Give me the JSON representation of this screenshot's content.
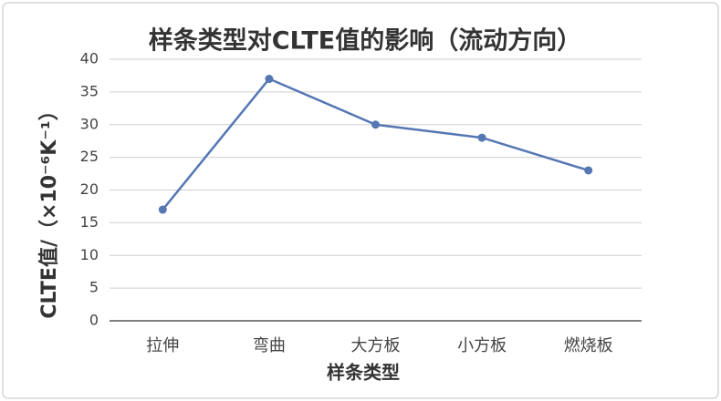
{
  "chart_data": {
    "type": "line",
    "title": "样条类型对CLTE值的影响（流动方向）",
    "x_label": "样条类型",
    "y_label": "CLTE值/（×10⁻⁶K⁻¹）",
    "categories": [
      "拉伸",
      "弯曲",
      "大方板",
      "小方板",
      "燃烧板"
    ],
    "values": [
      17,
      37,
      30,
      28,
      23
    ],
    "color": "#5577b3",
    "ylim": [
      0,
      40
    ],
    "yticks": [
      0,
      5,
      10,
      15,
      20,
      25,
      30,
      35,
      40
    ],
    "grid": true
  }
}
